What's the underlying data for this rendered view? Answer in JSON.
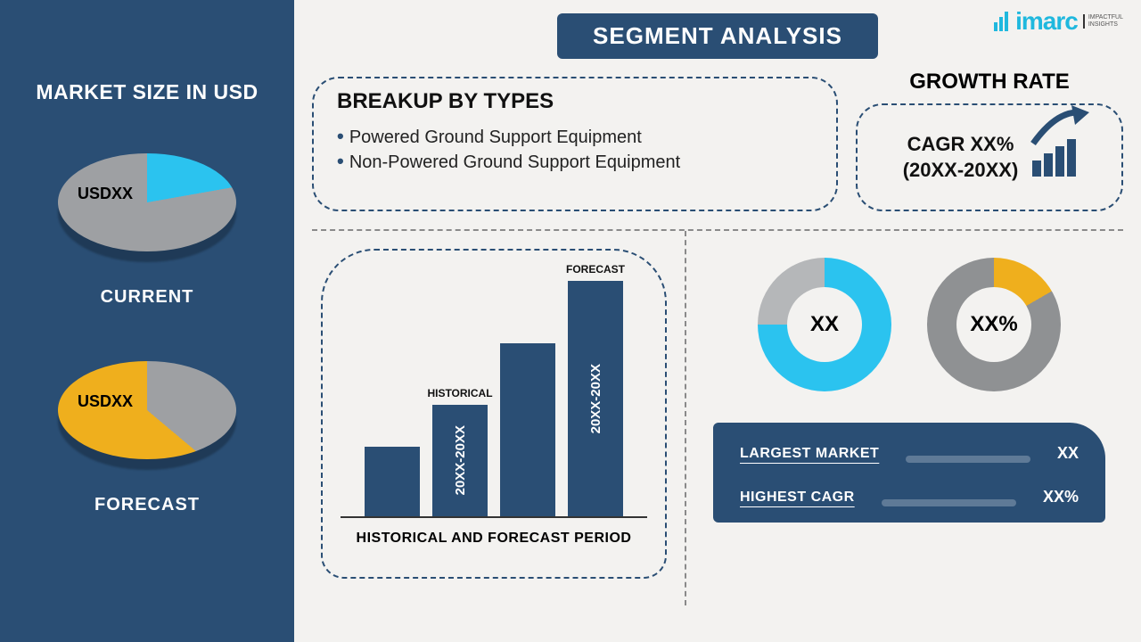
{
  "sidebar": {
    "heading": "MARKET SIZE IN USD",
    "pies": [
      {
        "label": "USDXX",
        "caption": "CURRENT",
        "slice_color": "#2bc3ef",
        "rest_color": "#9ea0a3",
        "slice_deg": 80
      },
      {
        "label": "USDXX",
        "caption": "FORECAST",
        "slice_color": "#efaf1d",
        "rest_color": "#9ea0a3",
        "slice_deg": 230
      }
    ],
    "background_color": "#2a4e74"
  },
  "logo": {
    "brand": "imarc",
    "tagline_l1": "IMPACTFUL",
    "tagline_l2": "INSIGHTS",
    "accent": "#1fb8de"
  },
  "title": "SEGMENT ANALYSIS",
  "breakup": {
    "heading": "BREAKUP BY TYPES",
    "items": [
      "Powered Ground Support Equipment",
      "Non-Powered Ground Support Equipment"
    ]
  },
  "growth": {
    "heading": "GROWTH RATE",
    "line1": "CAGR XX%",
    "line2": "(20XX-20XX)",
    "icon_bar_color": "#2a4e74",
    "arrow_color": "#2a4e74"
  },
  "bar_chart": {
    "type": "bar",
    "bars": [
      {
        "height_pct": 28,
        "label": "",
        "tag": ""
      },
      {
        "height_pct": 45,
        "label": "20XX-20XX",
        "tag": "HISTORICAL"
      },
      {
        "height_pct": 70,
        "label": "",
        "tag": ""
      },
      {
        "height_pct": 95,
        "label": "20XX-20XX",
        "tag": "FORECAST"
      }
    ],
    "bar_color": "#2a4e74",
    "caption": "HISTORICAL AND FORECAST PERIOD"
  },
  "donuts": [
    {
      "center": "XX",
      "arc_deg": 270,
      "arc_color": "#2bc3ef",
      "rest_color": "#b5b7b9",
      "stroke": 24
    },
    {
      "center": "XX%",
      "arc_deg": 60,
      "arc_color": "#efaf1d",
      "rest_color": "#8f9193",
      "stroke": 24
    }
  ],
  "panel": {
    "rows": [
      {
        "label": "LARGEST MARKET",
        "value": "XX",
        "progress_pct": 86
      },
      {
        "label": "HIGHEST CAGR",
        "value": "XX%",
        "progress_pct": 74
      }
    ],
    "bg": "#2a4e74"
  },
  "background_color": "#f3f2f0"
}
